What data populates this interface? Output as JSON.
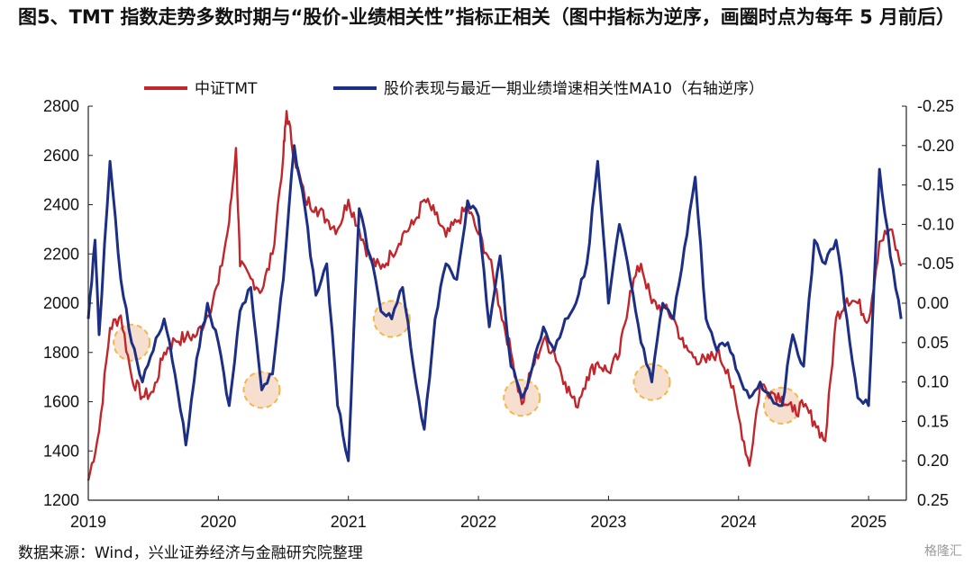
{
  "figure": {
    "title": "图5、TMT 指数走势多数时期与“股价-业绩相关性”指标正相关（图中指标为逆序，画圈时点为每年 5 月前后）",
    "source": "数据来源：Wind，兴业证券经济与金融研究院整理",
    "watermark": "格隆汇"
  },
  "chart_data": {
    "type": "line",
    "x_ticks": [
      "2019",
      "2020",
      "2021",
      "2022",
      "2023",
      "2024",
      "2025"
    ],
    "y_left": {
      "range": [
        1200,
        2800
      ],
      "ticks": [
        "1200",
        "1400",
        "1600",
        "1800",
        "2000",
        "2200",
        "2400",
        "2600",
        "2800"
      ]
    },
    "y_right": {
      "range": [
        -0.25,
        0.25
      ],
      "inverted": true,
      "ticks": [
        "-0.25",
        "-0.20",
        "-0.15",
        "-0.10",
        "-0.05",
        "0.00",
        "0.05",
        "0.10",
        "0.15",
        "0.20",
        "0.25"
      ]
    },
    "grid": false,
    "legend_position": "top",
    "series": [
      {
        "name": "中证TMT",
        "axis": "left",
        "color": "#c0272d",
        "points": [
          [
            "2019-01",
            1280
          ],
          [
            "2019-02",
            1480
          ],
          [
            "2019-03",
            1900
          ],
          [
            "2019-04",
            1950
          ],
          [
            "2019-05",
            1700
          ],
          [
            "2019-06",
            1620
          ],
          [
            "2019-07",
            1640
          ],
          [
            "2019-08",
            1800
          ],
          [
            "2019-09",
            1850
          ],
          [
            "2019-10",
            1860
          ],
          [
            "2019-11",
            1870
          ],
          [
            "2019-12",
            1950
          ],
          [
            "2020-01",
            2080
          ],
          [
            "2020-02",
            2330
          ],
          [
            "2020-02-20",
            2630
          ],
          [
            "2020-03",
            2150
          ],
          [
            "2020-04",
            2100
          ],
          [
            "2020-05",
            2050
          ],
          [
            "2020-06",
            2200
          ],
          [
            "2020-07",
            2600
          ],
          [
            "2020-07-10",
            2780
          ],
          [
            "2020-08",
            2600
          ],
          [
            "2020-09",
            2420
          ],
          [
            "2020-10",
            2390
          ],
          [
            "2020-11",
            2340
          ],
          [
            "2020-12",
            2300
          ],
          [
            "2021-01",
            2420
          ],
          [
            "2021-02",
            2300
          ],
          [
            "2021-03",
            2180
          ],
          [
            "2021-04",
            2140
          ],
          [
            "2021-05",
            2200
          ],
          [
            "2021-06",
            2280
          ],
          [
            "2021-07",
            2320
          ],
          [
            "2021-08",
            2420
          ],
          [
            "2021-09",
            2360
          ],
          [
            "2021-10",
            2270
          ],
          [
            "2021-11",
            2330
          ],
          [
            "2021-12",
            2390
          ],
          [
            "2022-01",
            2280
          ],
          [
            "2022-02",
            2180
          ],
          [
            "2022-03",
            1980
          ],
          [
            "2022-04",
            1800
          ],
          [
            "2022-05",
            1590
          ],
          [
            "2022-06",
            1740
          ],
          [
            "2022-07",
            1850
          ],
          [
            "2022-08",
            1800
          ],
          [
            "2022-09",
            1680
          ],
          [
            "2022-10",
            1580
          ],
          [
            "2022-11",
            1700
          ],
          [
            "2022-12",
            1760
          ],
          [
            "2023-01",
            1720
          ],
          [
            "2023-02",
            1790
          ],
          [
            "2023-03",
            2050
          ],
          [
            "2023-04",
            2160
          ],
          [
            "2023-05",
            2000
          ],
          [
            "2023-06",
            1980
          ],
          [
            "2023-07",
            1940
          ],
          [
            "2023-08",
            1820
          ],
          [
            "2023-09",
            1780
          ],
          [
            "2023-10",
            1760
          ],
          [
            "2023-11",
            1800
          ],
          [
            "2023-12",
            1730
          ],
          [
            "2024-01",
            1540
          ],
          [
            "2024-02",
            1340
          ],
          [
            "2024-03",
            1670
          ],
          [
            "2024-04",
            1640
          ],
          [
            "2024-05",
            1620
          ],
          [
            "2024-06",
            1560
          ],
          [
            "2024-07",
            1580
          ],
          [
            "2024-08",
            1520
          ],
          [
            "2024-09",
            1440
          ],
          [
            "2024-10",
            1940
          ],
          [
            "2024-11",
            2020
          ],
          [
            "2024-12",
            2000
          ],
          [
            "2025-01",
            1930
          ],
          [
            "2025-02",
            2250
          ],
          [
            "2025-03",
            2300
          ],
          [
            "2025-04",
            2150
          ]
        ]
      },
      {
        "name": "股价表现与最近一期业绩增速相关性MA10（右轴逆序）",
        "axis": "right",
        "color": "#1c2f84",
        "points": [
          [
            "2019-01",
            0.02
          ],
          [
            "2019-01-20",
            -0.08
          ],
          [
            "2019-02",
            0.04
          ],
          [
            "2019-03",
            -0.18
          ],
          [
            "2019-04",
            -0.03
          ],
          [
            "2019-05",
            0.05
          ],
          [
            "2019-06",
            0.1
          ],
          [
            "2019-07",
            0.06
          ],
          [
            "2019-08",
            0.02
          ],
          [
            "2019-09",
            0.09
          ],
          [
            "2019-10",
            0.18
          ],
          [
            "2019-11",
            0.07
          ],
          [
            "2019-12",
            0.0
          ],
          [
            "2020-01",
            0.05
          ],
          [
            "2020-02",
            0.13
          ],
          [
            "2020-03",
            0.01
          ],
          [
            "2020-04",
            -0.02
          ],
          [
            "2020-05",
            0.11
          ],
          [
            "2020-06",
            0.09
          ],
          [
            "2020-07",
            -0.03
          ],
          [
            "2020-08",
            -0.2
          ],
          [
            "2020-09",
            -0.12
          ],
          [
            "2020-10",
            -0.01
          ],
          [
            "2020-11",
            -0.05
          ],
          [
            "2020-12",
            0.13
          ],
          [
            "2021-01",
            0.2
          ],
          [
            "2021-02",
            -0.12
          ],
          [
            "2021-03",
            -0.06
          ],
          [
            "2021-04",
            0.01
          ],
          [
            "2021-05",
            0.02
          ],
          [
            "2021-06",
            -0.02
          ],
          [
            "2021-07",
            0.08
          ],
          [
            "2021-08",
            0.16
          ],
          [
            "2021-09",
            0.02
          ],
          [
            "2021-10",
            -0.05
          ],
          [
            "2021-11",
            -0.03
          ],
          [
            "2021-12",
            -0.13
          ],
          [
            "2022-01",
            -0.11
          ],
          [
            "2022-02",
            0.03
          ],
          [
            "2022-03",
            -0.06
          ],
          [
            "2022-04",
            0.08
          ],
          [
            "2022-05",
            0.12
          ],
          [
            "2022-06",
            0.08
          ],
          [
            "2022-07",
            0.03
          ],
          [
            "2022-08",
            0.06
          ],
          [
            "2022-09",
            0.02
          ],
          [
            "2022-10",
            0.0
          ],
          [
            "2022-11",
            -0.05
          ],
          [
            "2022-12",
            -0.18
          ],
          [
            "2023-01",
            0.0
          ],
          [
            "2023-02",
            -0.1
          ],
          [
            "2023-03",
            -0.03
          ],
          [
            "2023-04",
            0.05
          ],
          [
            "2023-05",
            0.1
          ],
          [
            "2023-06",
            0.0
          ],
          [
            "2023-07",
            0.02
          ],
          [
            "2023-08",
            -0.07
          ],
          [
            "2023-09",
            -0.16
          ],
          [
            "2023-10",
            0.02
          ],
          [
            "2023-11",
            0.06
          ],
          [
            "2023-12",
            0.05
          ],
          [
            "2024-01",
            0.09
          ],
          [
            "2024-02",
            0.12
          ],
          [
            "2024-03",
            0.1
          ],
          [
            "2024-04",
            0.12
          ],
          [
            "2024-05",
            0.13
          ],
          [
            "2024-06",
            0.04
          ],
          [
            "2024-07",
            0.08
          ],
          [
            "2024-08",
            -0.08
          ],
          [
            "2024-09",
            -0.05
          ],
          [
            "2024-10",
            -0.08
          ],
          [
            "2024-11",
            0.02
          ],
          [
            "2024-12",
            0.12
          ],
          [
            "2025-01",
            0.13
          ],
          [
            "2025-02",
            -0.17
          ],
          [
            "2025-03",
            -0.06
          ],
          [
            "2025-04",
            0.02
          ]
        ]
      }
    ],
    "highlighted_circles": [
      "2019-05",
      "2020-05",
      "2021-05",
      "2022-05",
      "2023-05",
      "2024-05"
    ]
  }
}
